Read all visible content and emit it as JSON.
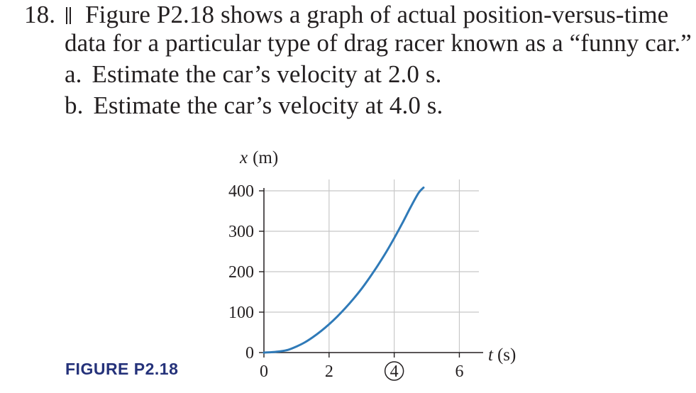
{
  "problem": {
    "number": "18.",
    "difficulty": "||",
    "statement_line1": "Figure P2.18 shows a graph of actual position-versus-time",
    "statement_line2": "data for a particular type of drag racer known as a “funny car.”",
    "parts": [
      {
        "label": "a.",
        "text": "Estimate the car’s velocity at 2.0 s."
      },
      {
        "label": "b.",
        "text": "Estimate the car’s velocity at 4.0 s."
      }
    ]
  },
  "figure": {
    "caption": "FIGURE P2.18"
  },
  "colors": {
    "curve": "#2f7ab8",
    "grid": "#c8c8c8",
    "axis": "#231f20",
    "caption": "#25327a"
  },
  "chart_data": {
    "type": "line",
    "title": "",
    "xlabel": {
      "symbol": "t",
      "unit": "(s)"
    },
    "ylabel": {
      "symbol": "x",
      "unit": "(m)"
    },
    "xlim": [
      0,
      6.6
    ],
    "ylim": [
      0,
      400
    ],
    "x_ticks": [
      "0",
      "2",
      "4",
      "6"
    ],
    "circled_x_tick": "4",
    "y_ticks": [
      "0",
      "100",
      "200",
      "300",
      "400"
    ],
    "grid": true,
    "series": [
      {
        "x": [
          0,
          0.25,
          0.5,
          0.75,
          1.0,
          1.25,
          1.5,
          1.75,
          2.0,
          2.25,
          2.5,
          2.75,
          3.0,
          3.25,
          3.5,
          3.75,
          4.0,
          4.25,
          4.5,
          4.75,
          4.9
        ],
        "y": [
          0,
          1,
          3,
          7,
          15,
          25,
          38,
          53,
          70,
          89,
          110,
          133,
          158,
          186,
          216,
          248,
          283,
          320,
          359,
          395,
          408
        ]
      }
    ]
  }
}
